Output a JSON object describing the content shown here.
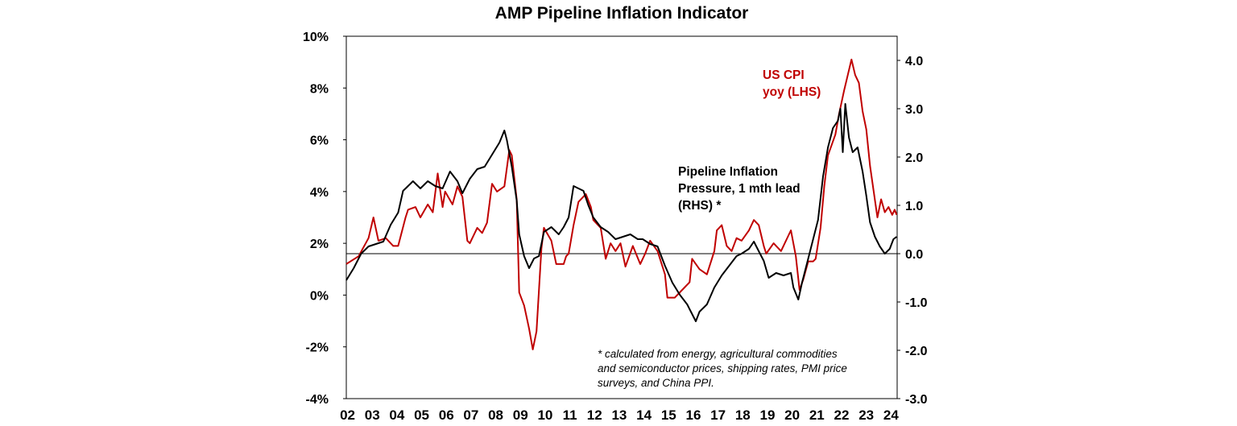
{
  "chart_data": {
    "type": "line",
    "title": "AMP Pipeline Inflation Indicator",
    "left_axis": {
      "ylim": [
        -4,
        10
      ],
      "ticks": [
        -4,
        -2,
        0,
        2,
        4,
        6,
        8,
        10
      ],
      "tick_labels": [
        "-4%",
        "-2%",
        "0%",
        "2%",
        "4%",
        "6%",
        "8%",
        "10%"
      ]
    },
    "right_axis": {
      "ylim": [
        -3,
        4.5
      ],
      "ticks": [
        -3,
        -2,
        -1,
        0,
        1,
        2,
        3,
        4
      ],
      "tick_labels": [
        "-3.0",
        "-2.0",
        "-1.0",
        "0.0",
        "1.0",
        "2.0",
        "3.0",
        "4.0"
      ]
    },
    "x_axis": {
      "xlim": [
        2002,
        2024.3
      ],
      "tick_labels": [
        "02",
        "03",
        "04",
        "05",
        "06",
        "07",
        "08",
        "09",
        "10",
        "11",
        "12",
        "13",
        "14",
        "15",
        "16",
        "17",
        "18",
        "19",
        "20",
        "21",
        "22",
        "23",
        "24"
      ]
    },
    "zero_line": {
      "axis": "right",
      "value": 0
    },
    "series": [
      {
        "name": "US CPI yoy (LHS)",
        "axis": "left",
        "color": "#c00000",
        "points": [
          [
            2002.0,
            1.2
          ],
          [
            2002.5,
            1.5
          ],
          [
            2002.9,
            2.2
          ],
          [
            2003.1,
            3.0
          ],
          [
            2003.3,
            2.1
          ],
          [
            2003.6,
            2.2
          ],
          [
            2003.9,
            1.9
          ],
          [
            2004.1,
            1.9
          ],
          [
            2004.4,
            3.0
          ],
          [
            2004.5,
            3.3
          ],
          [
            2004.8,
            3.4
          ],
          [
            2005.0,
            3.0
          ],
          [
            2005.3,
            3.5
          ],
          [
            2005.5,
            3.2
          ],
          [
            2005.7,
            4.7
          ],
          [
            2005.9,
            3.4
          ],
          [
            2006.0,
            4.0
          ],
          [
            2006.3,
            3.5
          ],
          [
            2006.5,
            4.2
          ],
          [
            2006.7,
            3.8
          ],
          [
            2006.9,
            2.1
          ],
          [
            2007.0,
            2.0
          ],
          [
            2007.3,
            2.6
          ],
          [
            2007.5,
            2.4
          ],
          [
            2007.7,
            2.8
          ],
          [
            2007.9,
            4.3
          ],
          [
            2008.1,
            4.0
          ],
          [
            2008.4,
            4.2
          ],
          [
            2008.6,
            5.6
          ],
          [
            2008.7,
            5.4
          ],
          [
            2008.9,
            3.7
          ],
          [
            2009.0,
            0.1
          ],
          [
            2009.2,
            -0.4
          ],
          [
            2009.4,
            -1.3
          ],
          [
            2009.55,
            -2.1
          ],
          [
            2009.7,
            -1.4
          ],
          [
            2009.9,
            1.8
          ],
          [
            2010.0,
            2.6
          ],
          [
            2010.3,
            2.1
          ],
          [
            2010.5,
            1.2
          ],
          [
            2010.8,
            1.2
          ],
          [
            2010.9,
            1.5
          ],
          [
            2011.0,
            1.6
          ],
          [
            2011.2,
            2.7
          ],
          [
            2011.4,
            3.6
          ],
          [
            2011.7,
            3.9
          ],
          [
            2011.9,
            3.4
          ],
          [
            2012.0,
            2.9
          ],
          [
            2012.3,
            2.6
          ],
          [
            2012.5,
            1.4
          ],
          [
            2012.7,
            2.0
          ],
          [
            2012.9,
            1.7
          ],
          [
            2013.1,
            2.0
          ],
          [
            2013.3,
            1.1
          ],
          [
            2013.6,
            1.9
          ],
          [
            2013.9,
            1.2
          ],
          [
            2014.1,
            1.6
          ],
          [
            2014.3,
            2.1
          ],
          [
            2014.6,
            1.7
          ],
          [
            2014.9,
            0.8
          ],
          [
            2015.0,
            -0.1
          ],
          [
            2015.3,
            -0.1
          ],
          [
            2015.6,
            0.2
          ],
          [
            2015.9,
            0.5
          ],
          [
            2016.0,
            1.4
          ],
          [
            2016.3,
            1.0
          ],
          [
            2016.6,
            0.8
          ],
          [
            2016.9,
            1.7
          ],
          [
            2017.0,
            2.5
          ],
          [
            2017.2,
            2.7
          ],
          [
            2017.4,
            1.9
          ],
          [
            2017.6,
            1.7
          ],
          [
            2017.8,
            2.2
          ],
          [
            2018.0,
            2.1
          ],
          [
            2018.3,
            2.5
          ],
          [
            2018.5,
            2.9
          ],
          [
            2018.7,
            2.7
          ],
          [
            2018.9,
            1.9
          ],
          [
            2019.0,
            1.6
          ],
          [
            2019.3,
            2.0
          ],
          [
            2019.6,
            1.7
          ],
          [
            2019.9,
            2.3
          ],
          [
            2020.0,
            2.5
          ],
          [
            2020.2,
            1.5
          ],
          [
            2020.35,
            0.2
          ],
          [
            2020.5,
            0.6
          ],
          [
            2020.7,
            1.3
          ],
          [
            2020.9,
            1.3
          ],
          [
            2021.0,
            1.4
          ],
          [
            2021.2,
            2.6
          ],
          [
            2021.35,
            4.2
          ],
          [
            2021.5,
            5.4
          ],
          [
            2021.8,
            6.2
          ],
          [
            2021.95,
            7.0
          ],
          [
            2022.15,
            7.9
          ],
          [
            2022.3,
            8.5
          ],
          [
            2022.45,
            9.1
          ],
          [
            2022.6,
            8.5
          ],
          [
            2022.75,
            8.2
          ],
          [
            2022.9,
            7.1
          ],
          [
            2023.05,
            6.4
          ],
          [
            2023.2,
            5.0
          ],
          [
            2023.35,
            4.0
          ],
          [
            2023.5,
            3.0
          ],
          [
            2023.65,
            3.7
          ],
          [
            2023.8,
            3.2
          ],
          [
            2023.95,
            3.4
          ],
          [
            2024.1,
            3.1
          ],
          [
            2024.2,
            3.3
          ],
          [
            2024.28,
            3.1
          ]
        ]
      },
      {
        "name": "Pipeline Inflation Pressure, 1 mth lead (RHS) *",
        "axis": "right",
        "color": "#000000",
        "points": [
          [
            2002.0,
            -0.55
          ],
          [
            2002.3,
            -0.3
          ],
          [
            2002.6,
            0.0
          ],
          [
            2002.9,
            0.15
          ],
          [
            2003.2,
            0.2
          ],
          [
            2003.5,
            0.25
          ],
          [
            2003.8,
            0.6
          ],
          [
            2004.1,
            0.85
          ],
          [
            2004.3,
            1.3
          ],
          [
            2004.5,
            1.4
          ],
          [
            2004.7,
            1.5
          ],
          [
            2005.0,
            1.35
          ],
          [
            2005.3,
            1.5
          ],
          [
            2005.6,
            1.4
          ],
          [
            2005.9,
            1.35
          ],
          [
            2006.2,
            1.7
          ],
          [
            2006.5,
            1.5
          ],
          [
            2006.7,
            1.25
          ],
          [
            2007.0,
            1.55
          ],
          [
            2007.3,
            1.75
          ],
          [
            2007.6,
            1.8
          ],
          [
            2007.9,
            2.05
          ],
          [
            2008.2,
            2.3
          ],
          [
            2008.4,
            2.55
          ],
          [
            2008.5,
            2.35
          ],
          [
            2008.7,
            1.8
          ],
          [
            2008.9,
            1.1
          ],
          [
            2009.0,
            0.4
          ],
          [
            2009.2,
            -0.05
          ],
          [
            2009.4,
            -0.3
          ],
          [
            2009.6,
            -0.1
          ],
          [
            2009.8,
            -0.05
          ],
          [
            2010.0,
            0.45
          ],
          [
            2010.3,
            0.55
          ],
          [
            2010.6,
            0.4
          ],
          [
            2010.8,
            0.55
          ],
          [
            2011.0,
            0.75
          ],
          [
            2011.2,
            1.4
          ],
          [
            2011.4,
            1.35
          ],
          [
            2011.6,
            1.3
          ],
          [
            2011.8,
            1.0
          ],
          [
            2012.0,
            0.75
          ],
          [
            2012.3,
            0.55
          ],
          [
            2012.6,
            0.45
          ],
          [
            2012.9,
            0.3
          ],
          [
            2013.2,
            0.35
          ],
          [
            2013.5,
            0.4
          ],
          [
            2013.8,
            0.3
          ],
          [
            2014.0,
            0.3
          ],
          [
            2014.3,
            0.2
          ],
          [
            2014.6,
            0.15
          ],
          [
            2014.9,
            -0.25
          ],
          [
            2015.2,
            -0.6
          ],
          [
            2015.5,
            -0.85
          ],
          [
            2015.8,
            -1.05
          ],
          [
            2016.0,
            -1.25
          ],
          [
            2016.15,
            -1.4
          ],
          [
            2016.3,
            -1.2
          ],
          [
            2016.6,
            -1.05
          ],
          [
            2016.9,
            -0.7
          ],
          [
            2017.2,
            -0.45
          ],
          [
            2017.5,
            -0.25
          ],
          [
            2017.8,
            -0.05
          ],
          [
            2018.0,
            0.0
          ],
          [
            2018.3,
            0.1
          ],
          [
            2018.5,
            0.25
          ],
          [
            2018.7,
            0.05
          ],
          [
            2018.9,
            -0.15
          ],
          [
            2019.1,
            -0.5
          ],
          [
            2019.4,
            -0.4
          ],
          [
            2019.7,
            -0.45
          ],
          [
            2020.0,
            -0.4
          ],
          [
            2020.1,
            -0.7
          ],
          [
            2020.3,
            -0.95
          ],
          [
            2020.45,
            -0.6
          ],
          [
            2020.7,
            -0.1
          ],
          [
            2020.9,
            0.3
          ],
          [
            2021.1,
            0.7
          ],
          [
            2021.3,
            1.6
          ],
          [
            2021.5,
            2.2
          ],
          [
            2021.7,
            2.6
          ],
          [
            2021.9,
            2.75
          ],
          [
            2022.0,
            3.0
          ],
          [
            2022.1,
            2.1
          ],
          [
            2022.2,
            3.1
          ],
          [
            2022.35,
            2.4
          ],
          [
            2022.5,
            2.1
          ],
          [
            2022.7,
            2.2
          ],
          [
            2022.9,
            1.7
          ],
          [
            2023.05,
            1.2
          ],
          [
            2023.2,
            0.65
          ],
          [
            2023.4,
            0.35
          ],
          [
            2023.6,
            0.15
          ],
          [
            2023.8,
            0.0
          ],
          [
            2024.0,
            0.1
          ],
          [
            2024.15,
            0.3
          ],
          [
            2024.28,
            0.35
          ]
        ]
      }
    ],
    "annotations": {
      "cpi_label": [
        "US CPI",
        "yoy (LHS)"
      ],
      "pipeline_label": [
        "Pipeline Inflation",
        "Pressure, 1 mth lead",
        "(RHS) *"
      ],
      "footnote": [
        "* calculated from energy, agricultural commodities",
        "and semiconductor prices, shipping rates, PMI price",
        "surveys, and China PPI."
      ]
    }
  }
}
